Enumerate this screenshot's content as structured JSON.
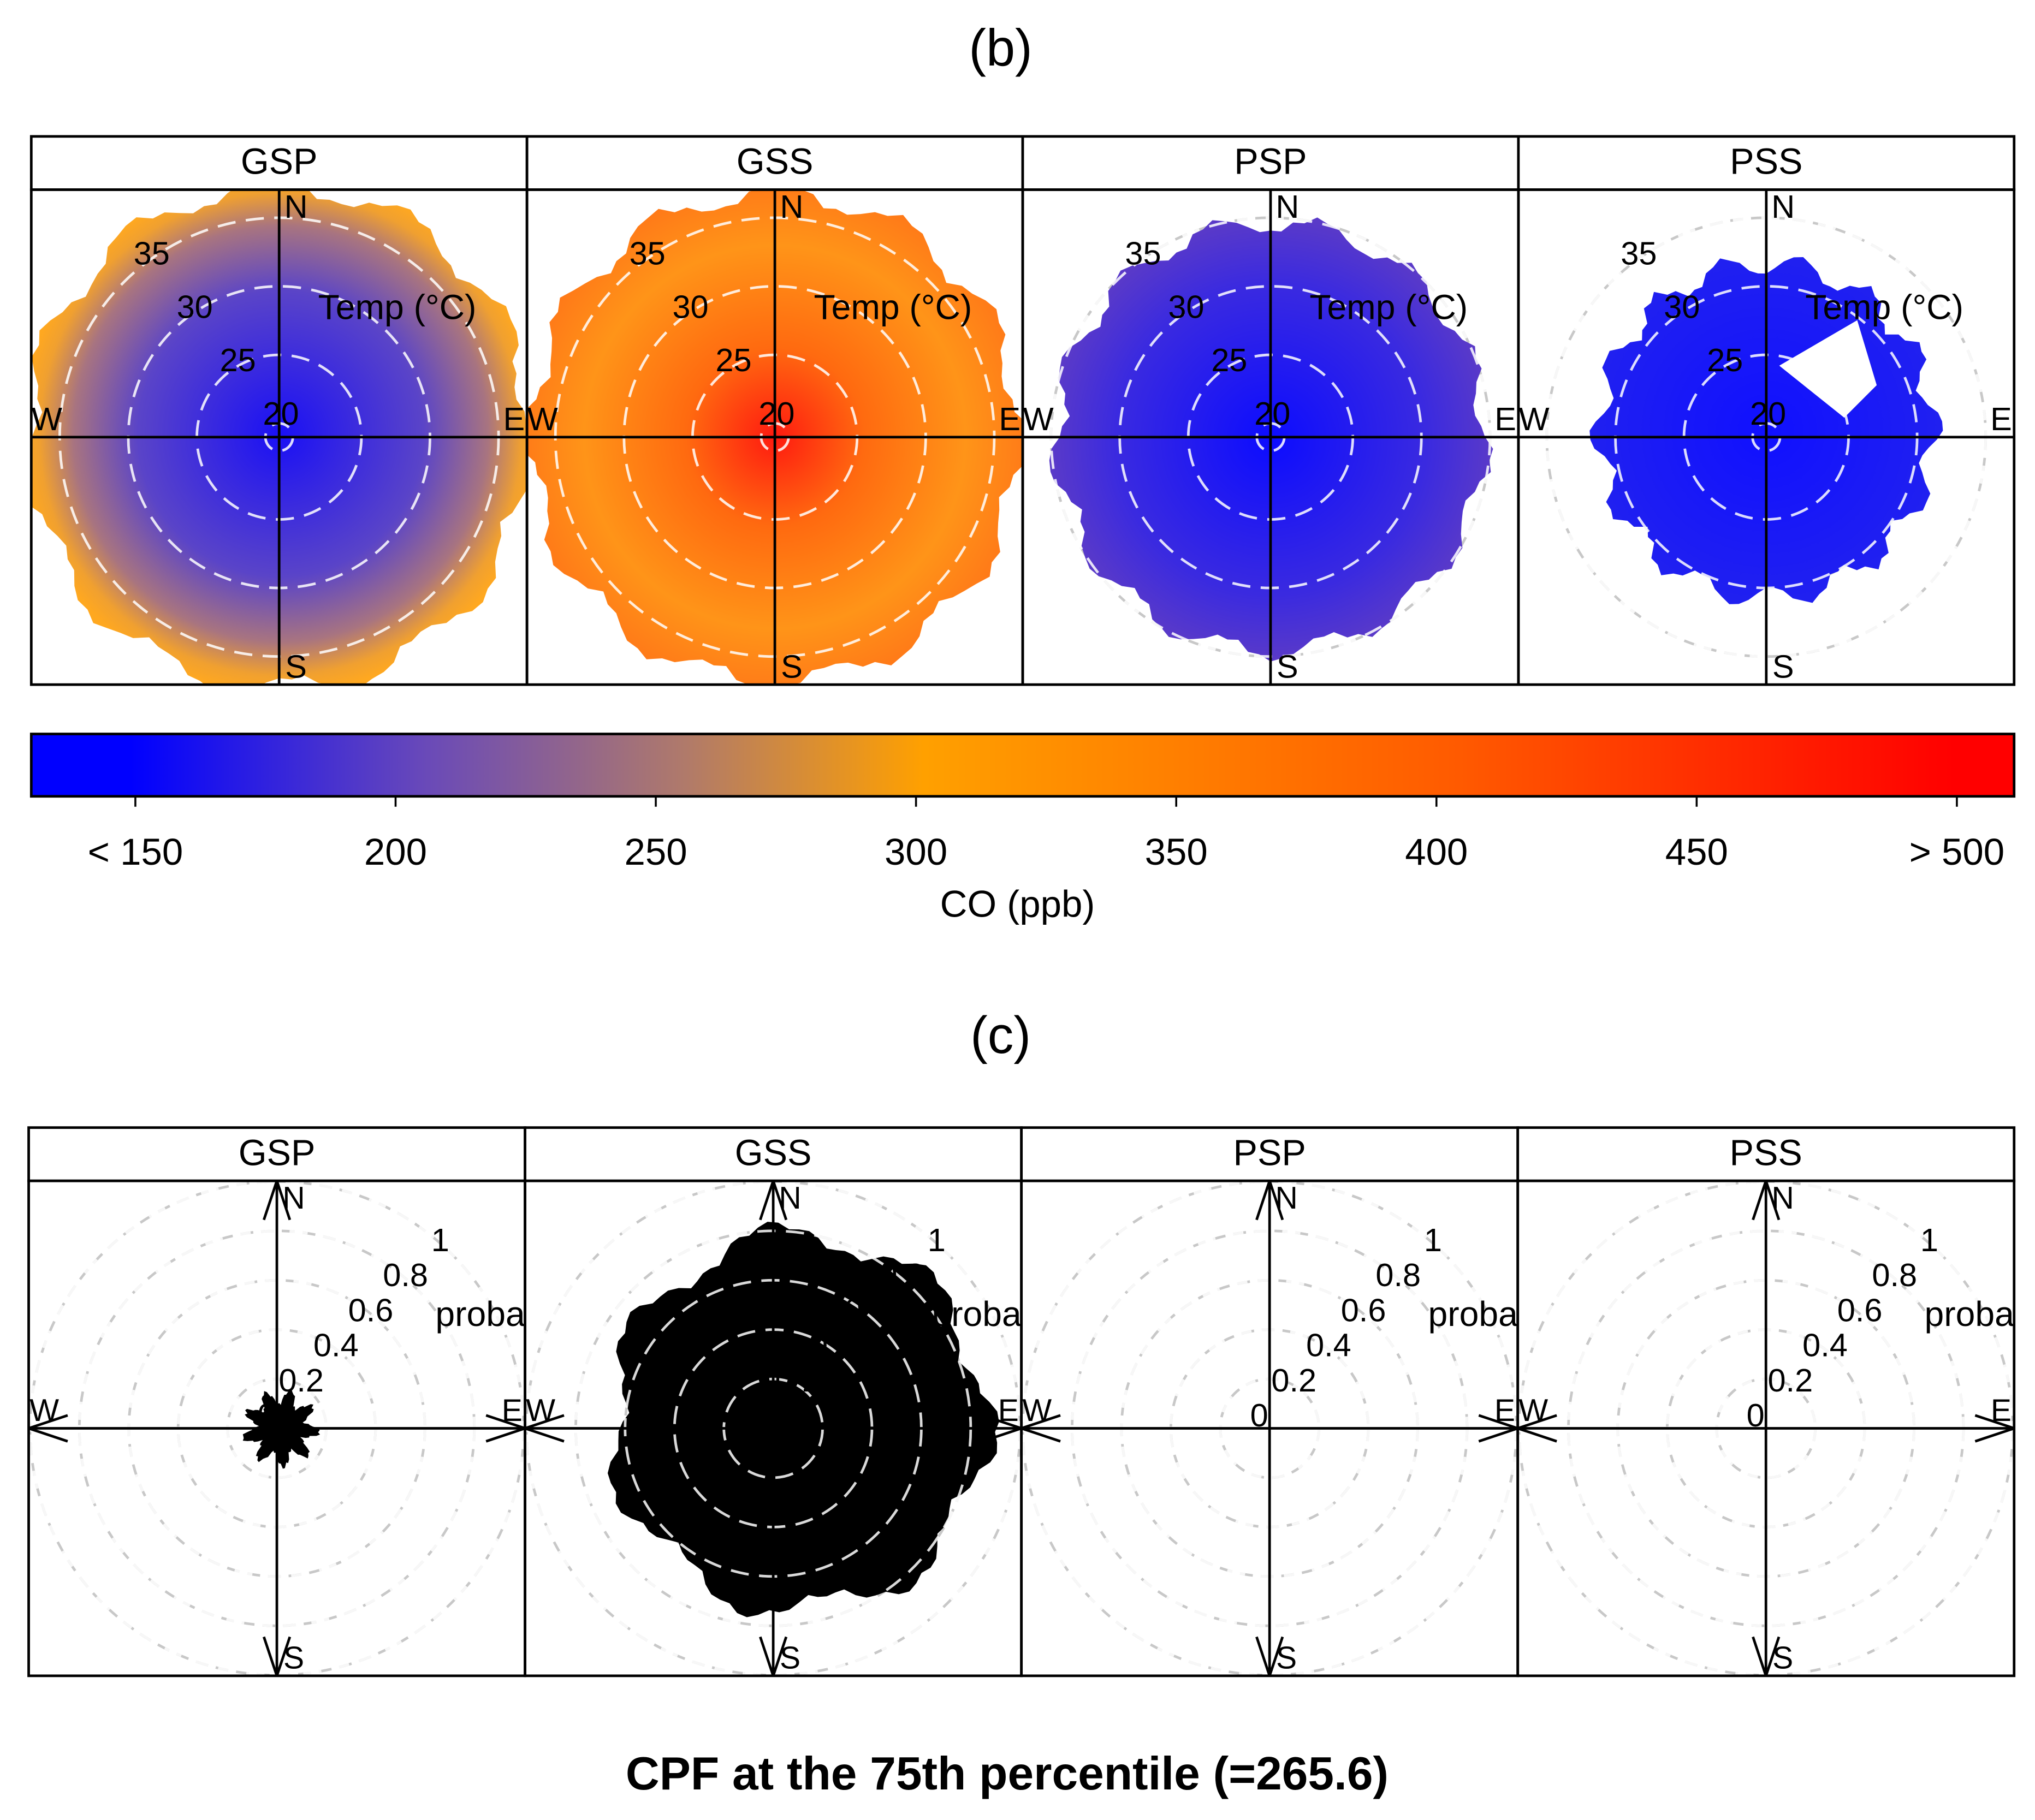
{
  "chart_data": [
    {
      "type": "polar-map",
      "label": "(b)",
      "panels": [
        "GSP",
        "GSS",
        "PSP",
        "PSS"
      ],
      "directions": [
        "N",
        "E",
        "S",
        "W"
      ],
      "radial_label": "Temp (°C)",
      "rlim": [
        19,
        37
      ],
      "rticks": [
        20,
        25,
        30,
        35
      ],
      "colorbar": {
        "title": "CO (ppb)",
        "lim": [
          130,
          511
        ],
        "ticks": [
          {
            "value": 150,
            "label": "< 150"
          },
          200,
          250,
          300,
          350,
          400,
          450,
          {
            "value": 500,
            "label": "> 500"
          }
        ]
      }
    },
    {
      "type": "polar-cpf",
      "label": "(c)",
      "panels": [
        "GSP",
        "GSS",
        "PSP",
        "PSS"
      ],
      "directions": [
        "N",
        "E",
        "S",
        "W"
      ],
      "radial_label": "proba",
      "rlim": [
        0,
        1
      ],
      "rticks": [
        0,
        0.2,
        0.4,
        0.6,
        0.8,
        1
      ],
      "title": "CPF at the 75th percentile (=265.6)"
    }
  ]
}
